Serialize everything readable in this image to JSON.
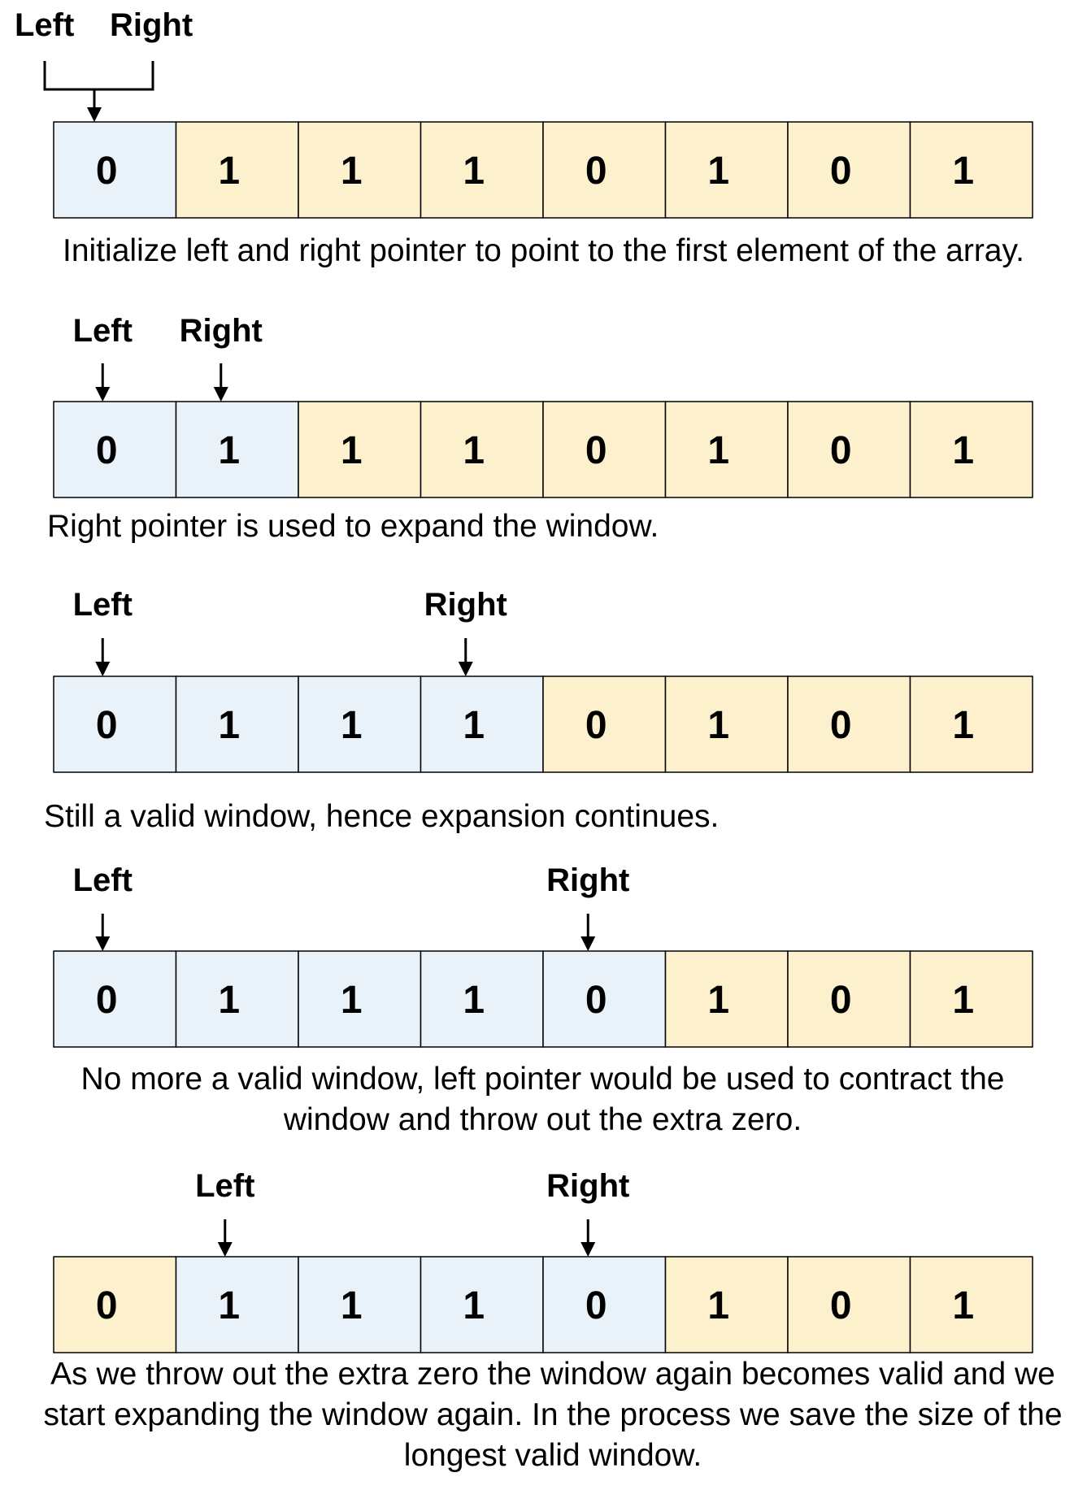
{
  "colors": {
    "window": "#e8f2f8",
    "outside": "#fdf0cc",
    "border": "#000000"
  },
  "steps": [
    {
      "cells": [
        "0",
        "1",
        "1",
        "1",
        "0",
        "1",
        "0",
        "1"
      ],
      "window": [
        0,
        0
      ],
      "left_label": "Left",
      "right_label": "Right",
      "left_index": 0,
      "right_index": 0,
      "caption": "Initialize left and right pointer to point to the first element of the array."
    },
    {
      "cells": [
        "0",
        "1",
        "1",
        "1",
        "0",
        "1",
        "0",
        "1"
      ],
      "window": [
        0,
        1
      ],
      "left_label": "Left",
      "right_label": "Right",
      "left_index": 0,
      "right_index": 1,
      "caption": "Right pointer is used to expand the window."
    },
    {
      "cells": [
        "0",
        "1",
        "1",
        "1",
        "0",
        "1",
        "0",
        "1"
      ],
      "window": [
        0,
        3
      ],
      "left_label": "Left",
      "right_label": "Right",
      "left_index": 0,
      "right_index": 3,
      "caption": "Still a valid window, hence expansion continues."
    },
    {
      "cells": [
        "0",
        "1",
        "1",
        "1",
        "0",
        "1",
        "0",
        "1"
      ],
      "window": [
        0,
        4
      ],
      "left_label": "Left",
      "right_label": "Right",
      "left_index": 0,
      "right_index": 4,
      "caption": "No more a valid window, left pointer would be used to contract the window and throw out the extra zero."
    },
    {
      "cells": [
        "0",
        "1",
        "1",
        "1",
        "0",
        "1",
        "0",
        "1"
      ],
      "window": [
        1,
        4
      ],
      "left_label": "Left",
      "right_label": "Right",
      "left_index": 1,
      "right_index": 4,
      "caption": "As we throw out the extra zero the window again becomes valid and we start expanding the window again. In the process we save the size of the longest valid window."
    }
  ]
}
